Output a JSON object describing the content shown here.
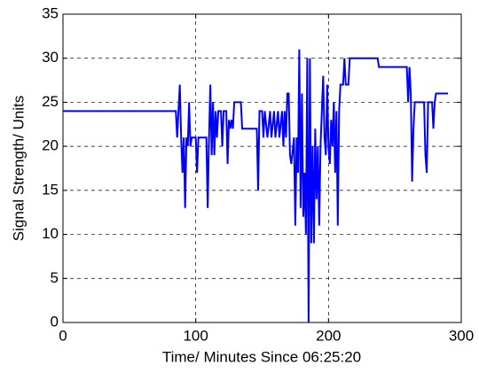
{
  "chart_data": {
    "type": "line",
    "xlabel": "Time/ Minutes Since 06:25:20",
    "ylabel": "Signal Strength/ Units",
    "color": "#0000ff",
    "grid": true,
    "xlim": [
      0,
      300
    ],
    "xticks": [
      0,
      100,
      200,
      300
    ],
    "ylim": [
      0,
      35
    ],
    "yticks": [
      0,
      5,
      10,
      15,
      20,
      25,
      30,
      35
    ],
    "x": [
      0,
      85,
      86,
      87,
      88,
      89,
      90,
      91,
      92,
      93,
      94,
      95,
      96,
      97,
      100,
      101,
      102,
      108,
      109,
      110,
      111,
      112,
      113,
      114,
      115,
      116,
      117,
      119,
      120,
      121,
      123,
      124,
      125,
      126,
      127,
      128,
      129,
      134,
      135,
      146,
      147,
      148,
      150,
      151,
      152,
      154,
      156,
      157,
      159,
      160,
      162,
      163,
      165,
      166,
      167,
      168,
      169,
      170,
      171,
      172,
      174,
      175,
      176,
      177,
      178,
      179,
      180,
      181,
      182,
      183,
      184,
      185,
      186,
      187,
      188,
      189,
      190,
      191,
      192,
      193,
      194,
      196,
      197,
      198,
      199,
      200,
      201,
      202,
      203,
      204,
      205,
      206,
      207,
      208,
      209,
      211,
      212,
      213,
      215,
      216,
      237,
      238,
      259,
      260,
      261,
      262,
      263,
      264,
      265,
      272,
      273,
      274,
      275,
      278,
      279,
      280,
      281,
      290
    ],
    "values": [
      24,
      24,
      21,
      24,
      27,
      21,
      17,
      21,
      13,
      21,
      20,
      25,
      20,
      21,
      21,
      17,
      21,
      21,
      13,
      21,
      27,
      19,
      25,
      19,
      24,
      21,
      24,
      24,
      20,
      24,
      24,
      18,
      23,
      22,
      23,
      22,
      25,
      25,
      22,
      22,
      15,
      24,
      24,
      21,
      24,
      21,
      24,
      21,
      24,
      21,
      24,
      21,
      24,
      20,
      24,
      21,
      26,
      26,
      19,
      18,
      21,
      11,
      21,
      17,
      31,
      13,
      26,
      12,
      17,
      10,
      30,
      0,
      30,
      9,
      20,
      9,
      22,
      14,
      20,
      11,
      20,
      28,
      21,
      19,
      27,
      20,
      18,
      23,
      20,
      25,
      17,
      24,
      11,
      24,
      27,
      27,
      30,
      27,
      27,
      30,
      30,
      29,
      29,
      25,
      29,
      26,
      16,
      22,
      25,
      25,
      19,
      17,
      25,
      25,
      22,
      25,
      26,
      26
    ]
  }
}
